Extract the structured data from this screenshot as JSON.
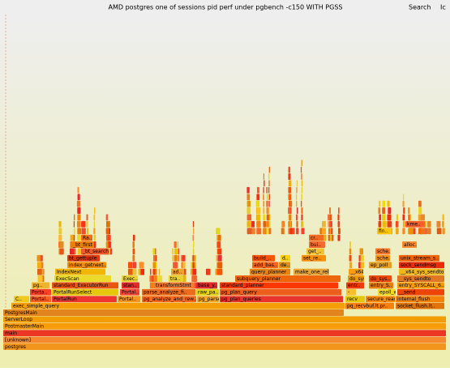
{
  "header": {
    "title": "AMD postgres one of sessions pid perf under pgbench -c150 WITH PGSS",
    "search": "Search",
    "ic": "Ic"
  },
  "frames": [
    "postgres",
    "[unknown]",
    "main",
    "PostmasterMain",
    "ServerLoop",
    "PostgresMain",
    "exec_simple_query",
    "pq_recvbuf.lt.pr..",
    "socket_flush.lt..",
    "C..",
    "Portal..",
    "PortalRun",
    "Portal..",
    "pg_analyze_and_rew..",
    "pg_parse..",
    "pg_plan_queries",
    "recv",
    "secure_read",
    "internal_flush",
    "Porta..",
    "PortalRunSelect",
    "Portal..",
    "parse_analyze_fi..",
    "raw_pa..",
    "pg_plan_query",
    "-",
    "epoll_wait",
    "__send",
    "pg..",
    "standard_ExecutorRun",
    "stan..",
    "transformStmt",
    "base_y..",
    "standard_planner",
    "entr..",
    "entry_S..",
    "entry_SYSCALL_6..",
    "ExecScan",
    "Exec..",
    "tra..",
    "subquery_planner",
    "do_sys..",
    "do_sys..",
    "__sys_sendto",
    "IndexNext",
    "ad..",
    "query_planner",
    "make_one_rel",
    "__x64..",
    "__x64_sys_sendto",
    "index_getnext..",
    "add_bas..",
    "de..",
    "ep_poll",
    "sock_sendmsg",
    "bt_gettuple",
    "build_..",
    "d..",
    "set_re..",
    "sche..",
    "unix_stream_s..",
    "_bt_search",
    "get_..",
    "sche..",
    "_bt_first",
    "bui..",
    "alloc..",
    "Ra..",
    "cr..",
    "fin..",
    "kme.."
  ]
}
